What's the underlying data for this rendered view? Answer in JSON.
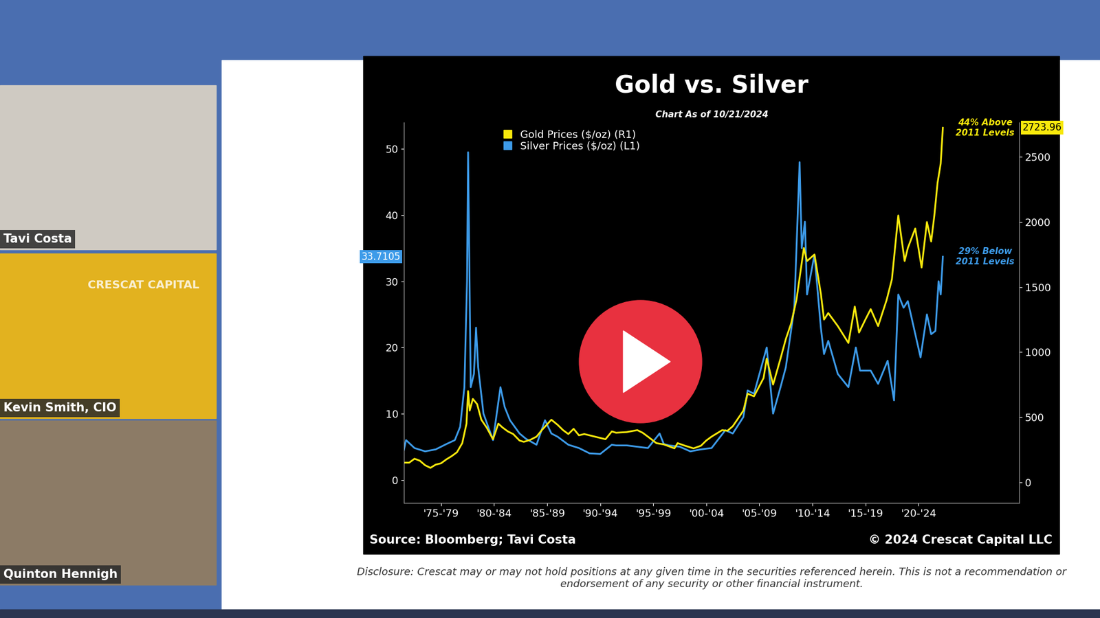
{
  "chart_data": {
    "type": "line",
    "title": "Gold vs. Silver",
    "subtitle": "Chart As of 10/21/2024",
    "source": "Source: Bloomberg; Tavi Costa",
    "copyright": "© 2024 Crescat Capital LLC",
    "disclosure": "Disclosure: Crescat may or may not hold positions at any given time in the securities referenced herein. This is not a recommendation or endorsement of any security or other financial instrument.",
    "panels": [
      {
        "name": "Tavi Costa"
      },
      {
        "name": "Kevin Smith, CIO",
        "logo": "CRESCAT CAPITAL"
      },
      {
        "name": "Quinton Hennigh"
      }
    ],
    "legend": "upper left",
    "grid": false,
    "xlim": [
      1974,
      2032
    ],
    "xticks": [
      {
        "value": 1977.5,
        "label": "'75-'79"
      },
      {
        "value": 1982.5,
        "label": "'80-'84"
      },
      {
        "value": 1987.5,
        "label": "'85-'89"
      },
      {
        "value": 1992.5,
        "label": "'90-'94"
      },
      {
        "value": 1997.5,
        "label": "'95-'99"
      },
      {
        "value": 2002.5,
        "label": "'00-'04"
      },
      {
        "value": 2007.5,
        "label": "'05-'09"
      },
      {
        "value": 2012.5,
        "label": "'10-'14"
      },
      {
        "value": 2017.5,
        "label": "'15-'19"
      },
      {
        "value": 2022.5,
        "label": "'20-'24"
      }
    ],
    "ylim": [
      -3.5,
      54
    ],
    "yticks": [
      0,
      10,
      20,
      30,
      40,
      50
    ],
    "y2lim": [
      -160,
      2765
    ],
    "y2ticks": [
      0,
      500,
      1000,
      1500,
      2000,
      2500
    ],
    "series": [
      {
        "name": "Gold Prices ($/oz) (R1)",
        "color": "#f7e80c",
        "axis": "y2",
        "x": [
          1974.0,
          1974.5,
          1975.0,
          1975.5,
          1976.0,
          1976.5,
          1977.0,
          1977.5,
          1978.0,
          1978.5,
          1979.0,
          1979.5,
          1979.9,
          1980.05,
          1980.2,
          1980.5,
          1980.9,
          1981.3,
          1981.8,
          1982.4,
          1982.9,
          1983.3,
          1983.8,
          1984.3,
          1984.9,
          1985.3,
          1985.9,
          1986.5,
          1987.0,
          1987.9,
          1988.5,
          1989.0,
          1989.5,
          1990.0,
          1990.5,
          1991.0,
          1991.5,
          1992.0,
          1993.0,
          1993.6,
          1994.0,
          1995.0,
          1996.0,
          1996.5,
          1997.0,
          1997.8,
          1998.5,
          1999.5,
          1999.8,
          2000.5,
          2001.3,
          2002.0,
          2002.5,
          2003.0,
          2004.0,
          2004.5,
          2005.0,
          2006.0,
          2006.4,
          2007.0,
          2007.9,
          2008.2,
          2008.8,
          2009.5,
          2010.0,
          2010.5,
          2011.0,
          2011.7,
          2012.0,
          2012.7,
          2013.3,
          2013.6,
          2014.0,
          2014.9,
          2015.9,
          2016.5,
          2016.9,
          2017.5,
          2018.0,
          2018.7,
          2019.5,
          2020.0,
          2020.6,
          2021.2,
          2021.5,
          2022.2,
          2022.8,
          2023.3,
          2023.7,
          2024.0,
          2024.3,
          2024.6,
          2024.8
        ],
        "values": [
          150,
          150,
          180,
          165,
          130,
          110,
          135,
          145,
          175,
          200,
          230,
          300,
          450,
          700,
          550,
          640,
          600,
          480,
          420,
          330,
          450,
          420,
          390,
          370,
          320,
          310,
          325,
          350,
          400,
          480,
          440,
          400,
          370,
          410,
          360,
          370,
          360,
          350,
          330,
          390,
          380,
          385,
          400,
          380,
          350,
          300,
          290,
          260,
          300,
          280,
          260,
          280,
          320,
          350,
          400,
          395,
          430,
          550,
          680,
          660,
          800,
          950,
          750,
          950,
          1100,
          1220,
          1400,
          1800,
          1700,
          1750,
          1450,
          1250,
          1300,
          1200,
          1070,
          1350,
          1150,
          1250,
          1330,
          1200,
          1400,
          1560,
          2050,
          1700,
          1800,
          1950,
          1650,
          2000,
          1850,
          2050,
          2300,
          2450,
          2723.96
        ]
      },
      {
        "name": "Silver Prices ($/oz) (L1)",
        "color": "#3d9be9",
        "x": [
          1974.0,
          1974.2,
          1975.0,
          1976.0,
          1977.0,
          1978.0,
          1978.8,
          1979.3,
          1979.7,
          1979.95,
          1980.05,
          1980.15,
          1980.3,
          1980.6,
          1980.8,
          1981.0,
          1981.5,
          1982.4,
          1983.1,
          1983.5,
          1984.0,
          1984.9,
          1985.5,
          1986.5,
          1987.3,
          1987.9,
          1988.5,
          1989.5,
          1990.5,
          1991.5,
          1992.5,
          1993.6,
          1994.0,
          1995.0,
          1996.0,
          1997.0,
          1998.1,
          1998.5,
          1999.0,
          2000.0,
          2001.0,
          2002.0,
          2003.0,
          2004.3,
          2005.0,
          2006.0,
          2006.4,
          2007.0,
          2008.2,
          2008.8,
          2009.5,
          2010.0,
          2010.8,
          2011.3,
          2011.5,
          2011.8,
          2012.0,
          2012.7,
          2013.3,
          2013.6,
          2014.0,
          2014.9,
          2015.9,
          2016.6,
          2017.0,
          2018.0,
          2018.7,
          2019.6,
          2020.2,
          2020.6,
          2021.1,
          2021.5,
          2022.7,
          2023.3,
          2023.7,
          2024.1,
          2024.4,
          2024.6,
          2024.8
        ],
        "values": [
          4.5,
          6,
          4.8,
          4.3,
          4.6,
          5.4,
          6,
          8,
          14,
          30,
          49.5,
          35,
          14,
          16,
          23,
          17,
          10,
          6,
          14,
          11,
          9,
          7,
          6.2,
          5.3,
          9,
          7,
          6.5,
          5.3,
          4.8,
          4.0,
          3.9,
          5.3,
          5.2,
          5.2,
          5.0,
          4.8,
          7,
          5.4,
          5.2,
          5.0,
          4.3,
          4.6,
          4.8,
          7.5,
          7,
          9.5,
          13.5,
          13,
          20,
          10,
          14,
          17,
          26,
          48,
          35,
          39,
          28,
          34,
          23,
          19,
          21,
          16,
          14,
          20,
          16.5,
          16.5,
          14.5,
          18,
          12,
          28,
          26,
          27,
          18.5,
          25,
          22,
          22.5,
          30,
          28,
          33.7105
        ]
      }
    ],
    "annotations": [
      {
        "text": "44% Above\n2011 Levels",
        "series": "Gold Prices ($/oz) (R1)"
      },
      {
        "text": "29% Below\n2011 Levels",
        "series": "Silver Prices ($/oz) (L1)"
      }
    ]
  }
}
